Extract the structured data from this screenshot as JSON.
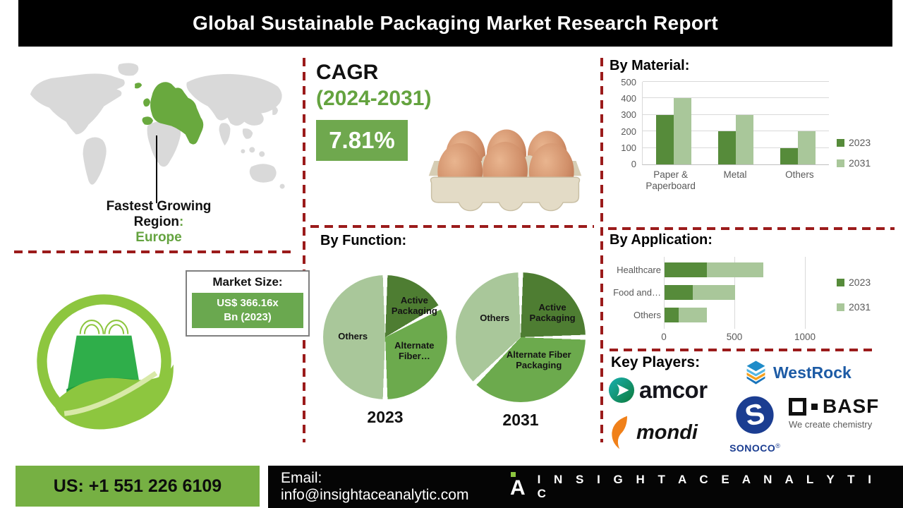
{
  "colors": {
    "accent_green_text": "#64a33f",
    "accent_green_box": "#6fa84e",
    "series_2023": "#568b3a",
    "series_2031": "#a9c79a",
    "pie_dark": "#4e7d32",
    "pie_mid": "#6caa4d",
    "pie_light": "#a9c79a",
    "dash_red": "#9b1b1b",
    "footer_green": "#76b043",
    "map_gray": "#d9d9d9",
    "map_highlight": "#69a93e"
  },
  "header": {
    "title": "Global Sustainable Packaging Market Research Report"
  },
  "map_section": {
    "caption_line1": "Fastest Growing",
    "caption_line2": "Region",
    "caption_colon": ":",
    "caption_region": "Europe"
  },
  "cagr_section": {
    "title": "CAGR",
    "period": "(2024-2031)",
    "value": "7.81%"
  },
  "market_size": {
    "title": "Market Size:",
    "value_line1": "US$ 366.16x",
    "value_line2": "Bn (2023)"
  },
  "chart_data": [
    {
      "type": "bar",
      "title": "By Material:",
      "categories": [
        "Paper & Paperboard",
        "Metal",
        "Others"
      ],
      "series": [
        {
          "name": "2023",
          "color": "#568b3a",
          "values": [
            300,
            200,
            100
          ]
        },
        {
          "name": "2031",
          "color": "#a9c79a",
          "values": [
            400,
            300,
            200
          ]
        }
      ],
      "ylim": [
        0,
        500
      ],
      "yticks": [
        0,
        100,
        200,
        300,
        400,
        500
      ],
      "grid": true,
      "legend_position": "right"
    },
    {
      "type": "pie",
      "title": "By Function:",
      "year_label": "2023",
      "slices": [
        {
          "label": "Active Packaging",
          "value": 17,
          "color": "#4e7d32"
        },
        {
          "label": "Alternate Fiber…",
          "value": 33,
          "color": "#6caa4d"
        },
        {
          "label": "Others",
          "value": 50,
          "color": "#a9c79a"
        }
      ]
    },
    {
      "type": "pie",
      "title": "By Function:",
      "year_label": "2031",
      "slices": [
        {
          "label": "Active Packaging",
          "value": 25,
          "color": "#4e7d32"
        },
        {
          "label": "Alternate Fiber Packaging",
          "value": 37.5,
          "color": "#6caa4d"
        },
        {
          "label": "Others",
          "value": 37.5,
          "color": "#a9c79a"
        }
      ]
    },
    {
      "type": "bar-h-stacked",
      "title": "By Application:",
      "categories": [
        "Healthcare",
        "Food and…",
        "Others"
      ],
      "series": [
        {
          "name": "2023",
          "color": "#568b3a",
          "values": [
            300,
            200,
            100
          ]
        },
        {
          "name": "2031",
          "color": "#a9c79a",
          "values": [
            400,
            300,
            200
          ]
        }
      ],
      "xlim": [
        0,
        1150
      ],
      "xticks": [
        0,
        500,
        1000
      ],
      "grid": true,
      "legend_position": "right"
    }
  ],
  "key_players": {
    "title": "Key Players:",
    "amcor": "amcor",
    "westrock": "WestRock",
    "mondi": "mondi",
    "sonoco": "SONOCO",
    "sonoco_reg": "®",
    "basf": "BASF",
    "basf_tagline": "We create chemistry"
  },
  "footer": {
    "phone": "US: +1 551 226 6109",
    "email_label": "Email:",
    "email": "info@insightaceanalytic.com",
    "brand": "I N S I G H T   A C E   A N A L Y T I C",
    "brand_mark": "A"
  }
}
